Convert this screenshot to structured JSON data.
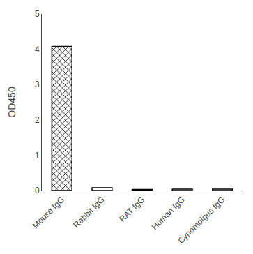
{
  "chart_data": {
    "type": "bar",
    "ylabel": "OD450",
    "categories": [
      "Mouse IgG",
      "Rabbit IgG",
      "RAT IgG",
      "Human IgG",
      "Cynomolgus IgG"
    ],
    "values": [
      4.08,
      0.08,
      0.03,
      0.04,
      0.04
    ],
    "color": "#000000",
    "ylim": [
      0,
      5
    ],
    "yticks": [
      0,
      1,
      2,
      3,
      4,
      5
    ],
    "grid": false
  }
}
